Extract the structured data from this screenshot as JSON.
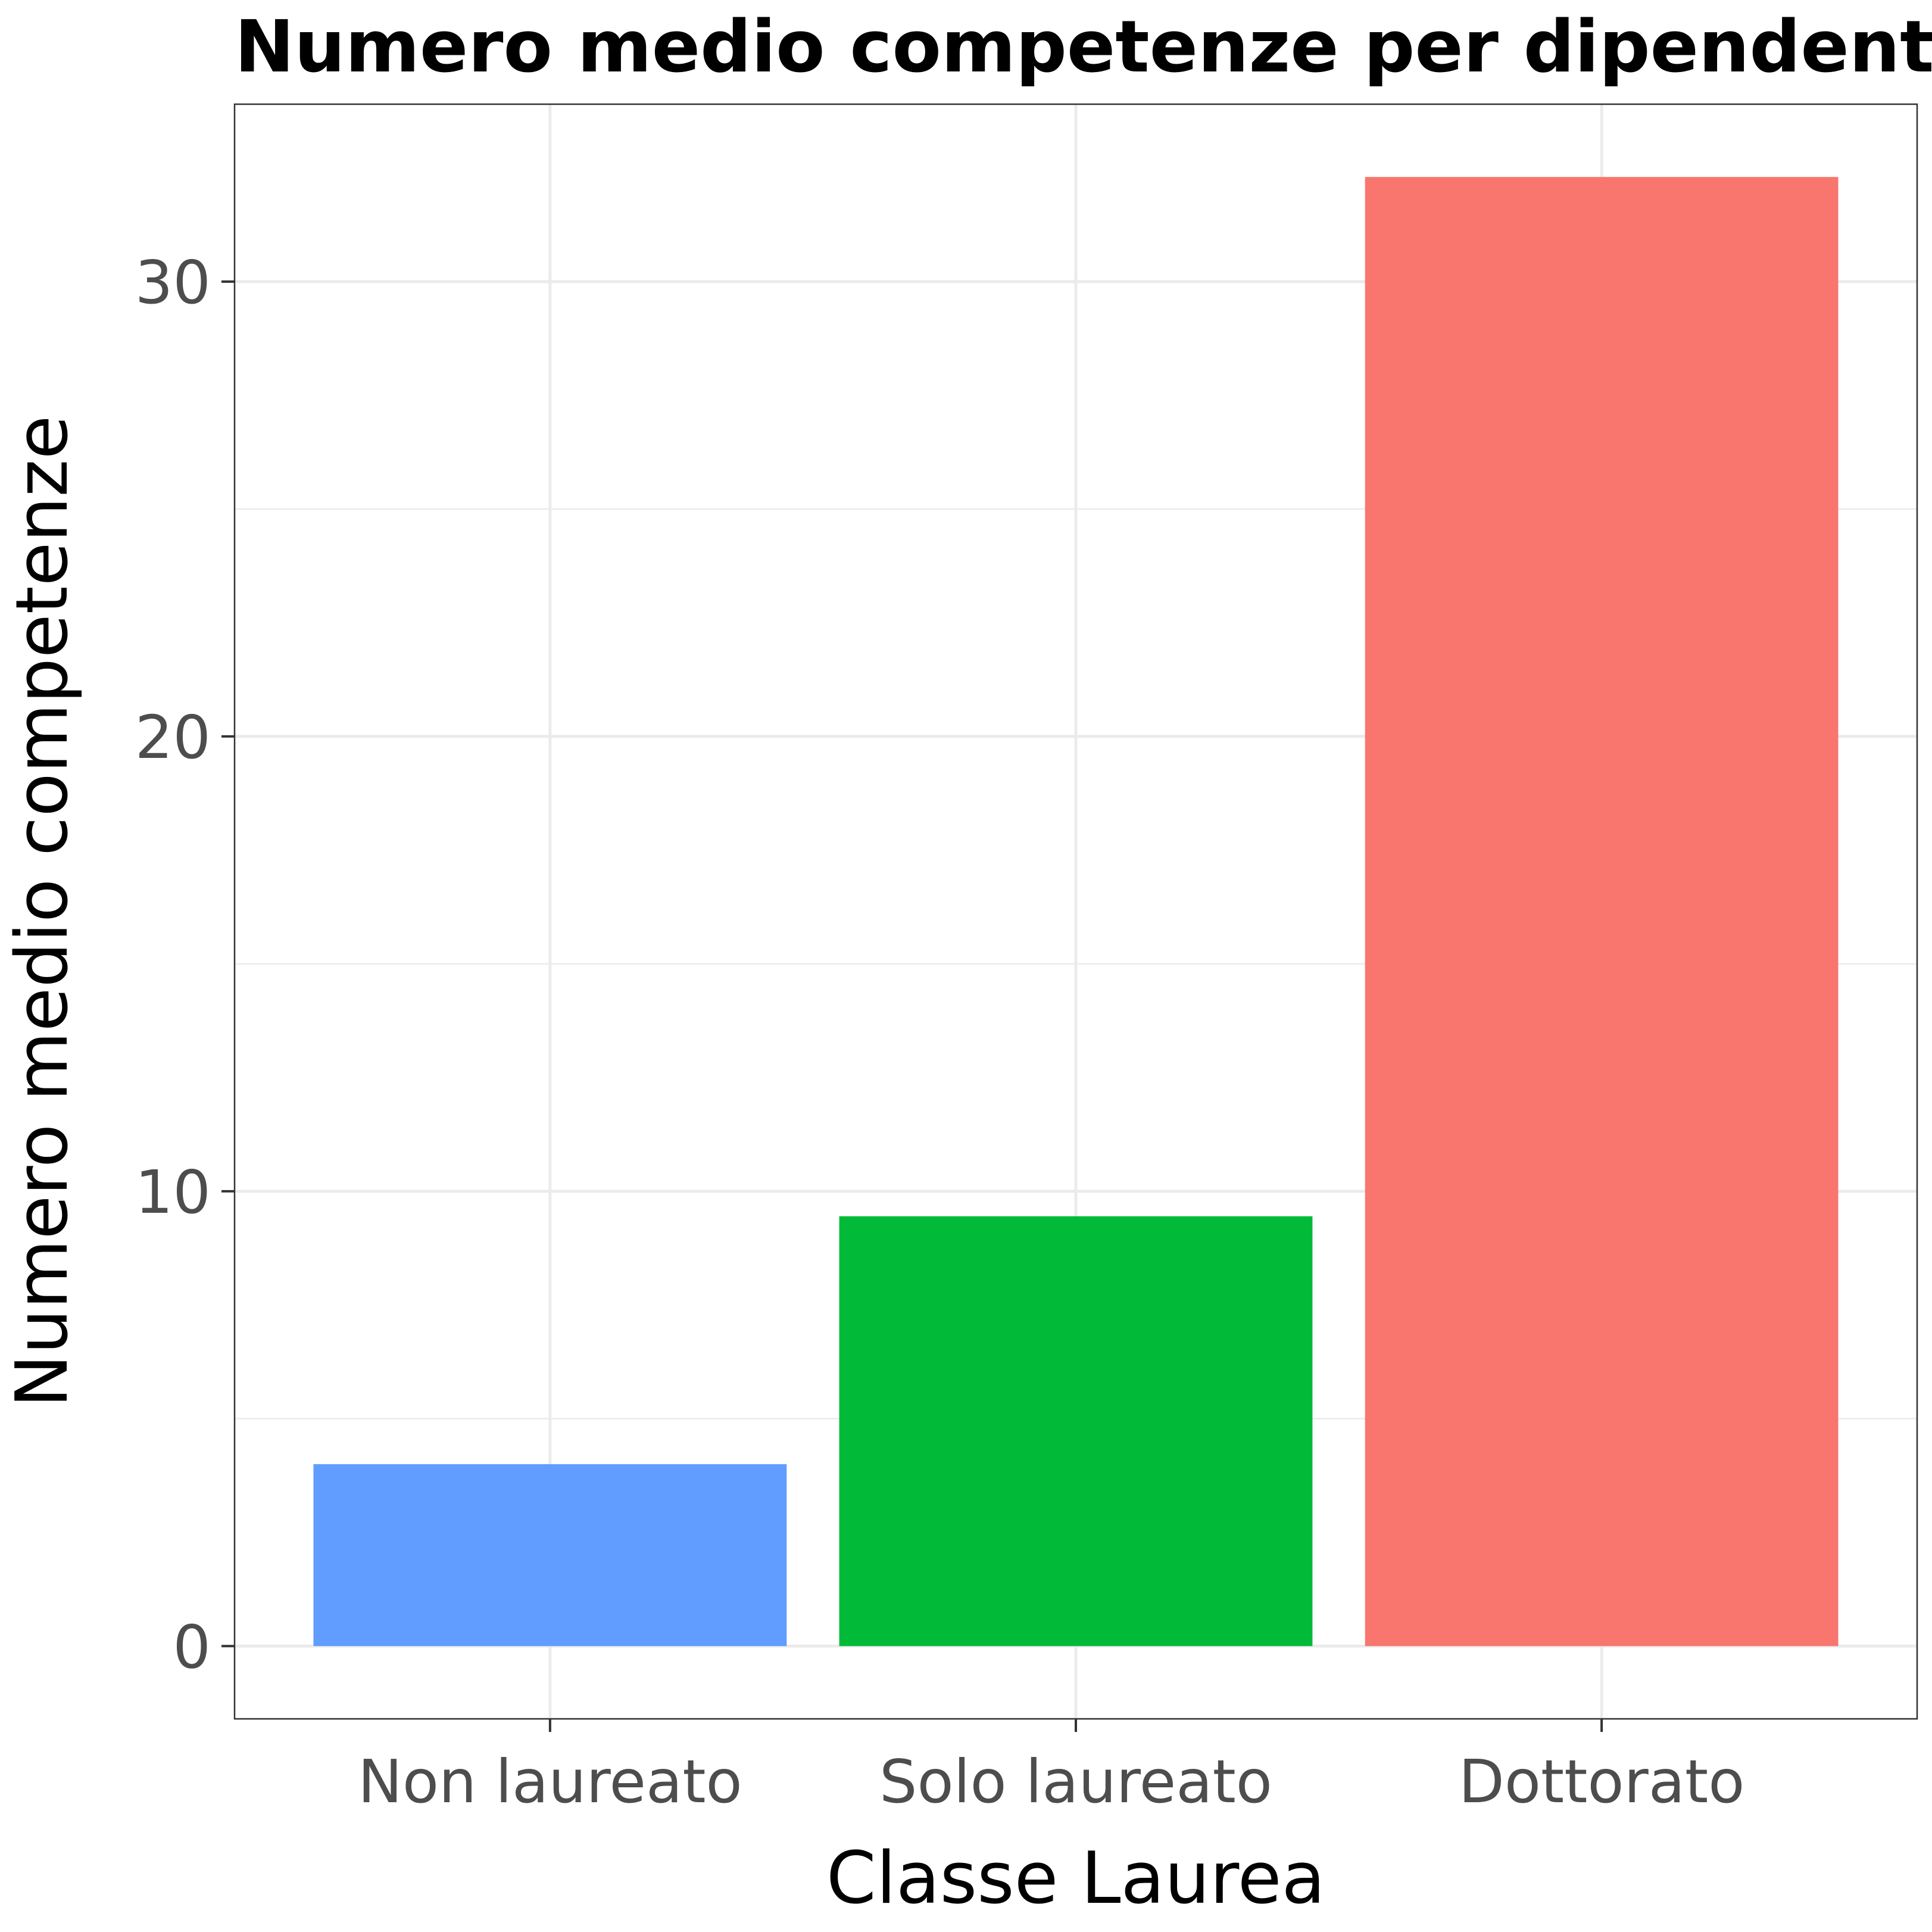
{
  "chart_data": {
    "type": "bar",
    "title": "Numero medio competenze per dipendente",
    "xlabel": "Classe Laurea",
    "ylabel": "Numero medio competenze",
    "categories": [
      "Non laureato",
      "Solo laureato",
      "Dottorato"
    ],
    "values": [
      4.0,
      9.45,
      32.3
    ],
    "colors": [
      "#619CFF",
      "#00BA38",
      "#F8766D"
    ],
    "ylim": [
      -1.6,
      33.9
    ],
    "yticks": [
      0,
      10,
      20,
      30
    ],
    "grid": true,
    "legend": "none"
  }
}
